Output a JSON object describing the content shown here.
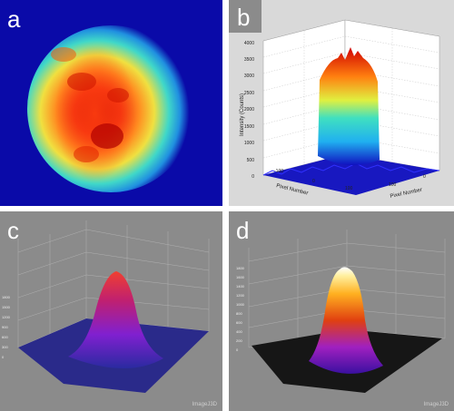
{
  "panels": {
    "a": {
      "label": "a"
    },
    "b": {
      "label": "b",
      "z_label": "Intensity (Counts)",
      "x_label": "Pixel Number",
      "y_label": "Pixel Number",
      "z_ticks": [
        "4000",
        "3500",
        "3000",
        "2500",
        "2000",
        "1500",
        "1000",
        "500",
        "0"
      ],
      "x_ticks": [
        "-100",
        "0",
        "100"
      ],
      "y_ticks": [
        "100",
        "0"
      ]
    },
    "c": {
      "label": "c",
      "z_ticks": [
        "1800",
        "1500",
        "1200",
        "900",
        "600",
        "300",
        "0"
      ],
      "watermark": "ImageJ3D"
    },
    "d": {
      "label": "d",
      "z_ticks": [
        "1800",
        "1600",
        "1400",
        "1200",
        "1000",
        "800",
        "600",
        "400",
        "200",
        "0"
      ],
      "watermark": "ImageJ3D"
    }
  },
  "colors": {
    "background_blue": "#0a0aa8",
    "hot_red": "#e02000",
    "cool_cyan": "#40d0e8",
    "panel_gray": "#8b8b8b",
    "plot_bg": "#d9d9d9"
  }
}
